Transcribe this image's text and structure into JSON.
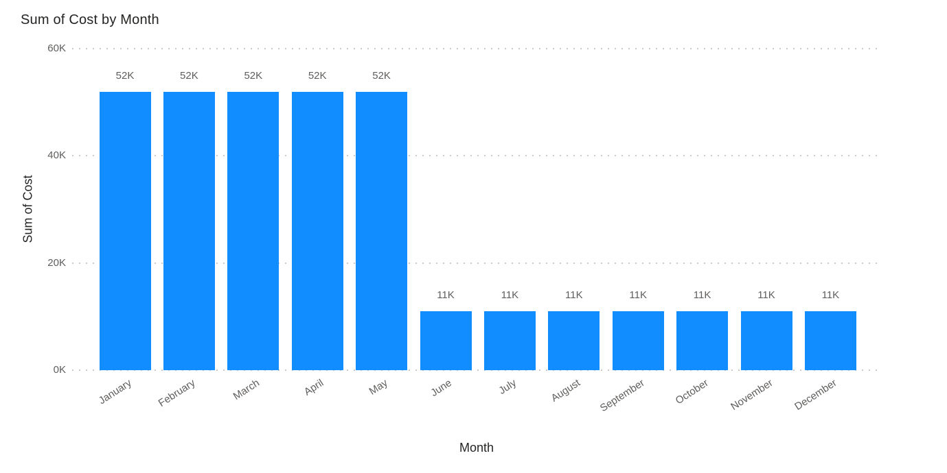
{
  "title": "Sum of Cost by Month",
  "colors": {
    "bar": "#118DFF",
    "title_text": "#252423",
    "axis_title_text": "#252423",
    "tick_label_text": "#605E5C",
    "data_label_text": "#605E5C",
    "gridline": "#C9C9C9",
    "background": "#FFFFFF"
  },
  "chart_data": {
    "type": "bar",
    "title": "Sum of Cost by Month",
    "xlabel": "Month",
    "ylabel": "Sum of Cost",
    "categories": [
      "January",
      "February",
      "March",
      "April",
      "May",
      "June",
      "July",
      "August",
      "September",
      "October",
      "November",
      "December"
    ],
    "values": [
      52000,
      52000,
      52000,
      52000,
      52000,
      11000,
      11000,
      11000,
      11000,
      11000,
      11000,
      11000
    ],
    "data_labels": [
      "52K",
      "52K",
      "52K",
      "52K",
      "52K",
      "11K",
      "11K",
      "11K",
      "11K",
      "11K",
      "11K",
      "11K"
    ],
    "y_ticks": [
      {
        "value": 0,
        "label": "0K"
      },
      {
        "value": 20000,
        "label": "20K"
      },
      {
        "value": 40000,
        "label": "40K"
      },
      {
        "value": 60000,
        "label": "60K"
      }
    ],
    "ylim": [
      0,
      60000
    ],
    "grid": "dotted-horizontal",
    "legend": "none",
    "category_label_rotation_deg": -33
  }
}
